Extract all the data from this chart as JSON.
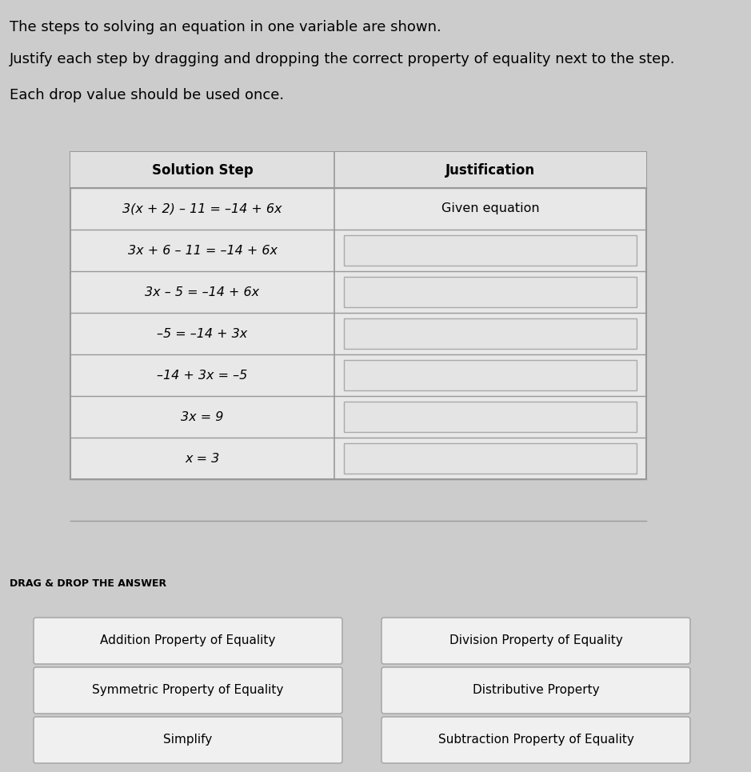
{
  "background_color": "#cccccc",
  "title_lines": [
    "The steps to solving an equation in one variable are shown.",
    "Justify each step by dragging and dropping the correct property of equality next to the step.",
    "Each drop value should be used once."
  ],
  "table_header": [
    "Solution Step",
    "Justification"
  ],
  "table_rows": [
    [
      "3(x + 2) – 11 = –14 + 6x",
      "Given equation"
    ],
    [
      "3x + 6 – 11 = –14 + 6x",
      ""
    ],
    [
      "3x – 5 = –14 + 6x",
      ""
    ],
    [
      "–5 = –14 + 3x",
      ""
    ],
    [
      "–14 + 3x = –5",
      ""
    ],
    [
      "3x = 9",
      ""
    ],
    [
      "x = 3",
      ""
    ]
  ],
  "drag_drop_label": "DRAG & DROP THE ANSWER",
  "drag_drop_left": [
    "Addition Property of Equality",
    "Symmetric Property of Equality",
    "Simplify"
  ],
  "drag_drop_right": [
    "Division Property of Equality",
    "Distributive Property",
    "Subtraction Property of Equality"
  ],
  "table_bg": "#e8e8e8",
  "header_row_bg": "#e0e0e0",
  "drop_box_bg": "#e4e4e4",
  "drag_box_bg": "#f0f0f0",
  "box_border_color": "#aaaaaa",
  "table_border_color": "#999999",
  "font_size_title": 13,
  "font_size_header": 12,
  "font_size_body": 11.5,
  "font_size_drag_label": 9,
  "font_size_drag_items": 11
}
